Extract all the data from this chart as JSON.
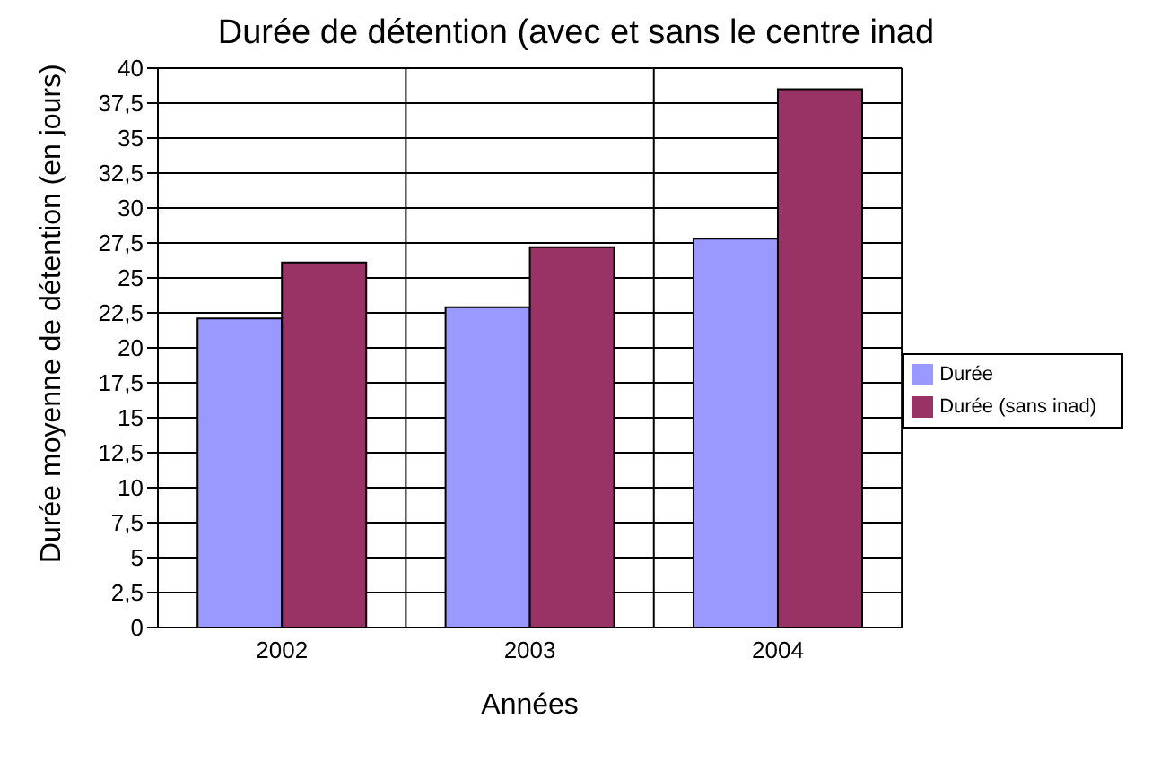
{
  "chart_data": {
    "type": "bar",
    "title": "Durée de détention (avec et sans le centre inad",
    "xlabel": "Années",
    "ylabel": "Durée moyenne de détention (en jours)",
    "categories": [
      "2002",
      "2003",
      "2004"
    ],
    "series": [
      {
        "name": "Durée",
        "color": "#9999ff",
        "values": [
          22.1,
          22.9,
          27.8
        ]
      },
      {
        "name": "Durée (sans inad)",
        "color": "#993366",
        "values": [
          26.1,
          27.2,
          38.5
        ]
      }
    ],
    "ylim": [
      0,
      40
    ],
    "yticks": [
      0,
      {
        "value": 2.5,
        "label": "2,5"
      },
      5,
      {
        "value": 7.5,
        "label": "7,5"
      },
      10,
      {
        "value": 12.5,
        "label": "12,5"
      },
      15,
      {
        "value": 17.5,
        "label": "17,5"
      },
      20,
      {
        "value": 22.5,
        "label": "22,5"
      },
      25,
      {
        "value": 27.5,
        "label": "27,5"
      },
      30,
      {
        "value": 32.5,
        "label": "32,5"
      },
      35,
      {
        "value": 37.5,
        "label": "37,5"
      },
      40
    ],
    "grid": true,
    "legend": "right"
  }
}
